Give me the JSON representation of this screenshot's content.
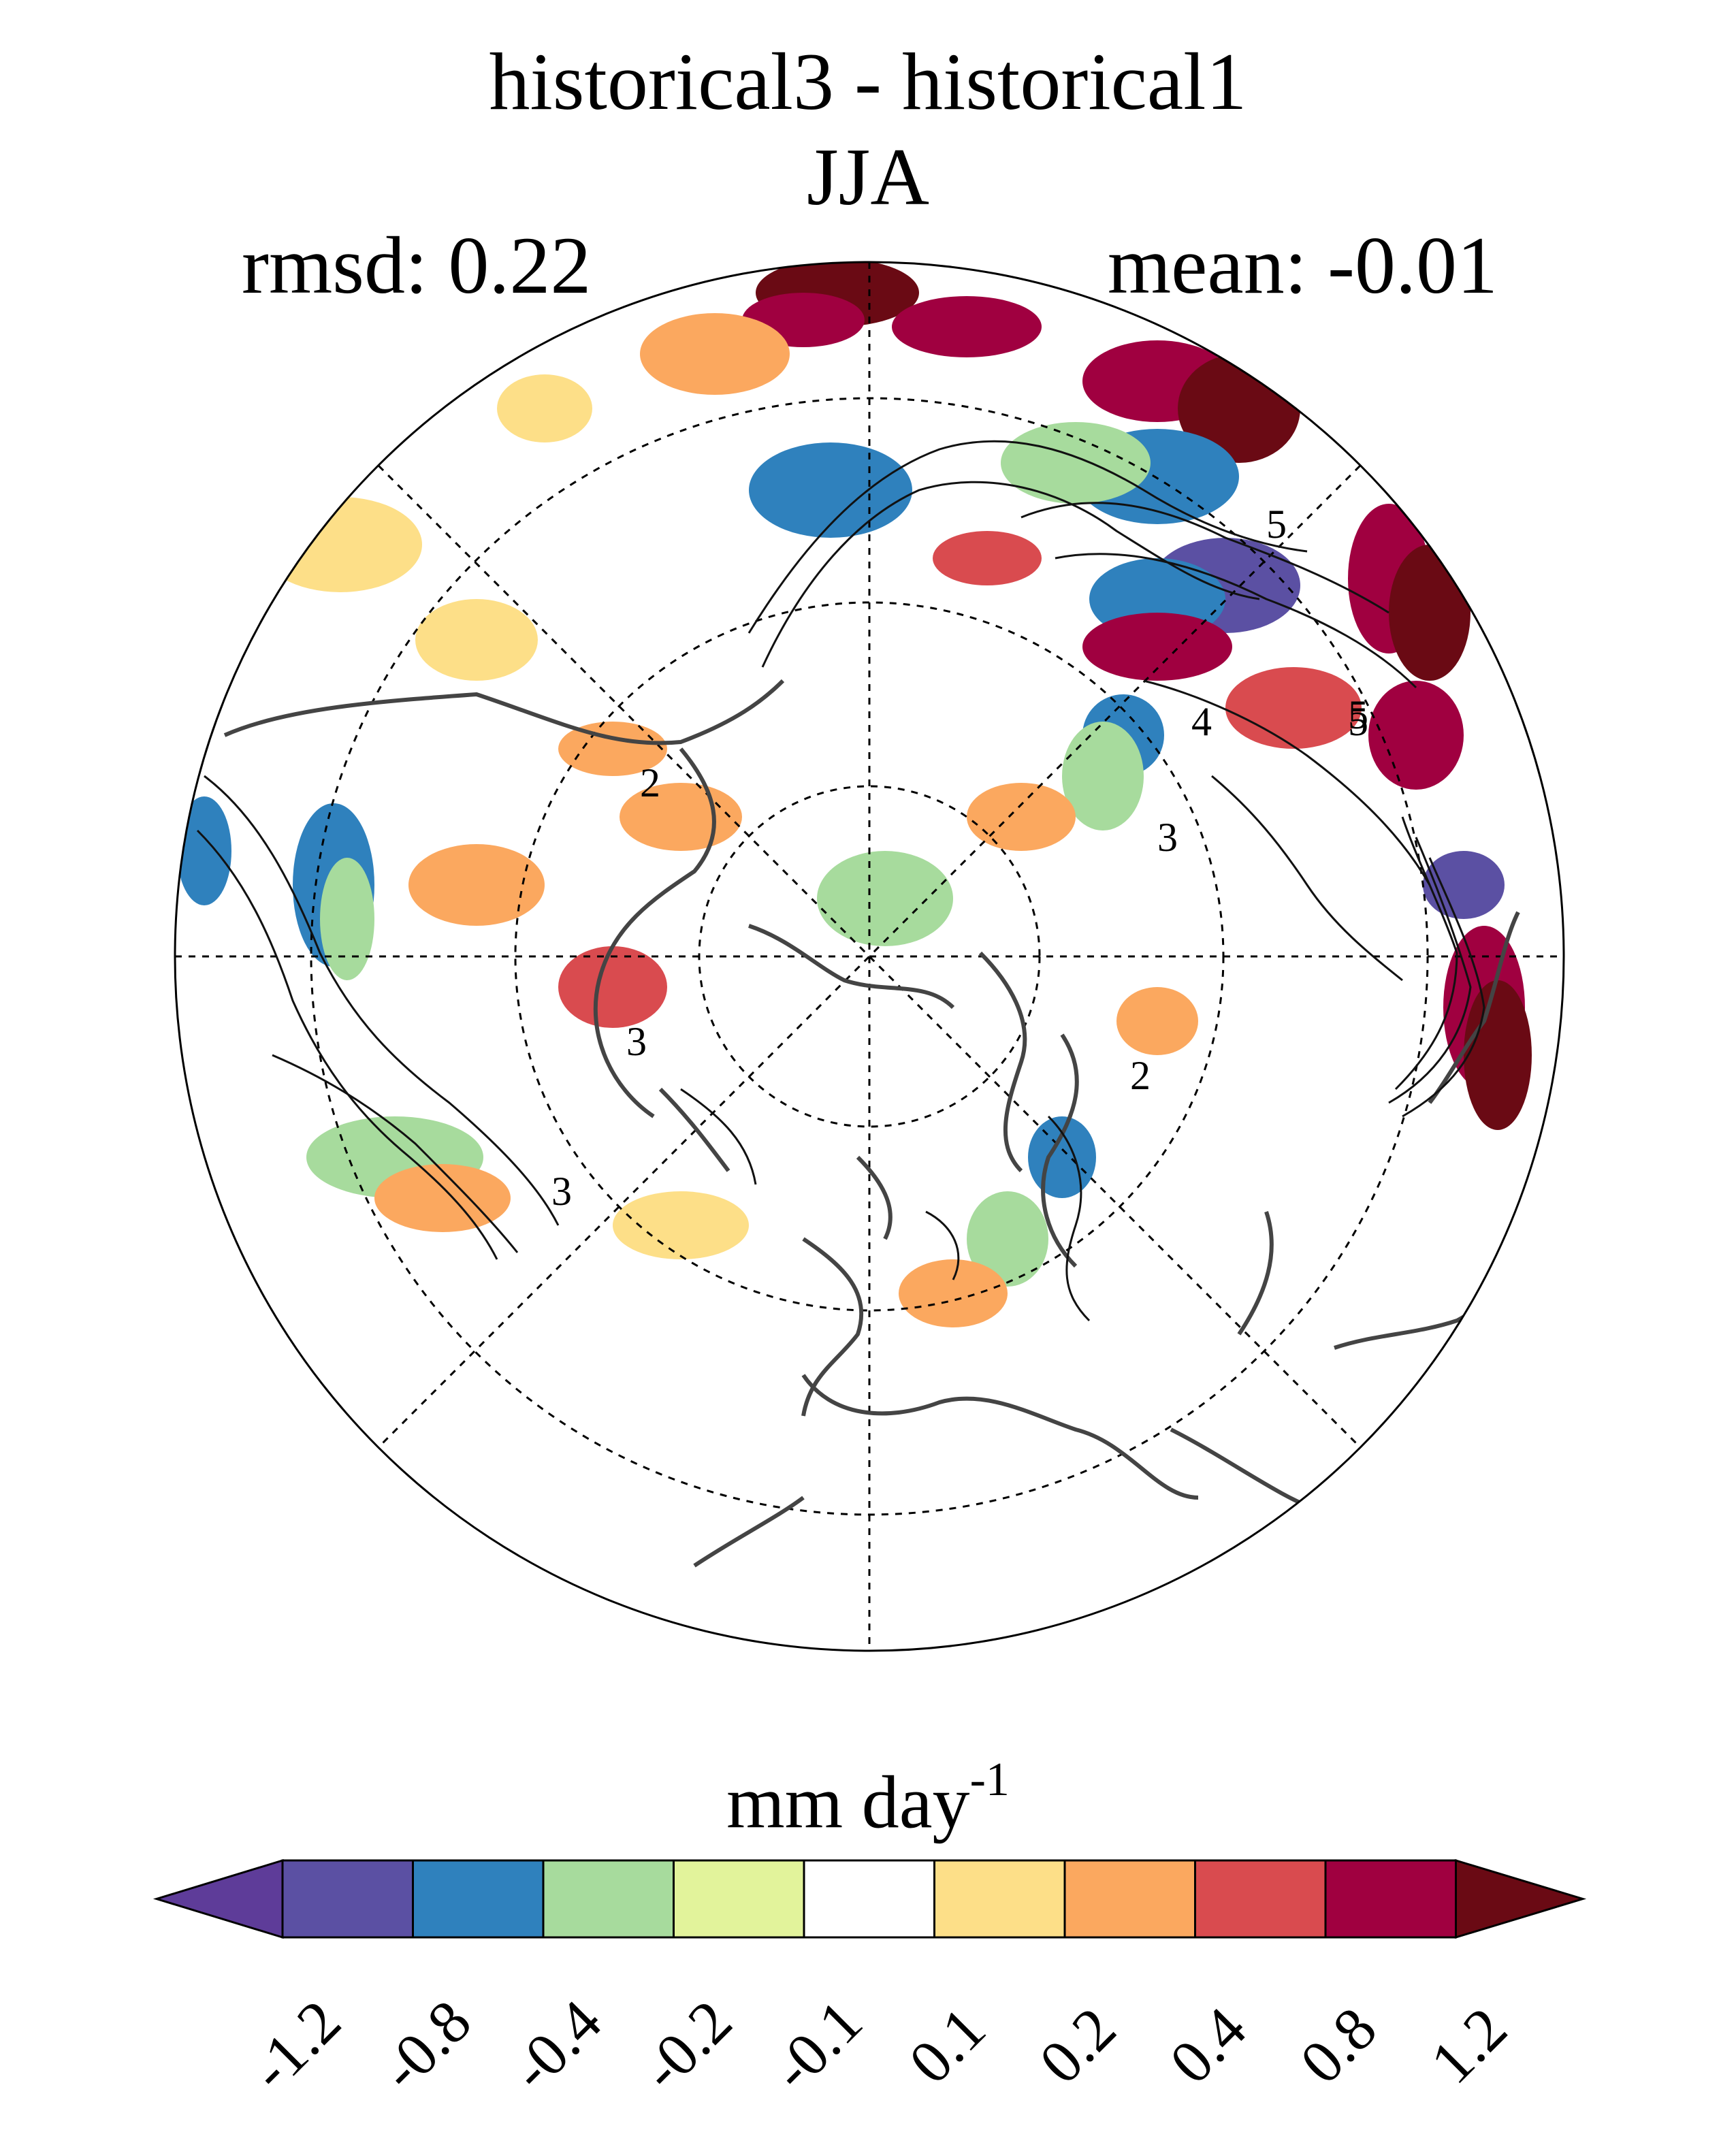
{
  "header": {
    "title": "historical3 - historical1",
    "season": "JJA",
    "rmsd": "rmsd: 0.22",
    "mean": "mean: -0.01"
  },
  "colorbar": {
    "units_base": "mm day",
    "units_exp": "-1",
    "ticks": [
      "-1.2",
      "-0.8",
      "-0.4",
      "-0.2",
      "-0.1",
      "0.1",
      "0.2",
      "0.4",
      "0.8",
      "1.2"
    ],
    "colors": [
      "#5e3c99",
      "#5b50a3",
      "#2f81bd",
      "#a7db9d",
      "#e2f39b",
      "#ffffff",
      "#fddf88",
      "#fba85f",
      "#d94b4f",
      "#a00040",
      "#6a0a14"
    ]
  },
  "map": {
    "projection": "north polar stereographic",
    "contour_labels": [
      "5",
      "5",
      "4",
      "5",
      "3",
      "2",
      "2",
      "3",
      "3"
    ]
  }
}
